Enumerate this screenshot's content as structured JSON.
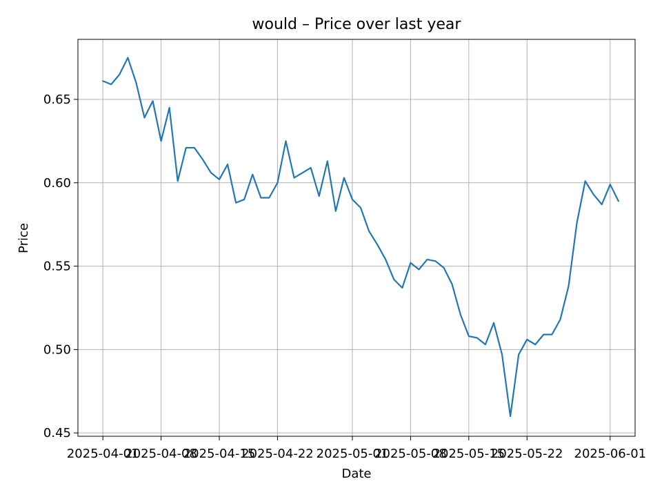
{
  "chart_data": {
    "type": "line",
    "title": "would – Price over last year",
    "xlabel": "Date",
    "ylabel": "Price",
    "grid": true,
    "colors": {
      "series": "#1f77b4"
    },
    "xlim": [
      "2025-03-29",
      "2025-06-04"
    ],
    "ylim": [
      0.448,
      0.686
    ],
    "yticks": [
      0.45,
      0.5,
      0.55,
      0.6,
      0.65
    ],
    "ytick_labels": [
      "0.45",
      "0.50",
      "0.55",
      "0.60",
      "0.65"
    ],
    "xticks": [
      "2025-04-01",
      "2025-04-08",
      "2025-04-15",
      "2025-04-22",
      "2025-05-01",
      "2025-05-08",
      "2025-05-15",
      "2025-05-22",
      "2025-06-01"
    ],
    "xtick_labels": [
      "2025-04-01",
      "2025-04-08",
      "2025-04-15",
      "2025-04-22",
      "2025-05-01",
      "2025-05-08",
      "2025-05-15",
      "2025-05-22",
      "2025-06-01"
    ],
    "series": [
      {
        "name": "Price",
        "x": [
          "2025-04-01",
          "2025-04-02",
          "2025-04-03",
          "2025-04-04",
          "2025-04-05",
          "2025-04-06",
          "2025-04-07",
          "2025-04-08",
          "2025-04-09",
          "2025-04-10",
          "2025-04-11",
          "2025-04-12",
          "2025-04-13",
          "2025-04-14",
          "2025-04-15",
          "2025-04-16",
          "2025-04-17",
          "2025-04-18",
          "2025-04-19",
          "2025-04-20",
          "2025-04-21",
          "2025-04-22",
          "2025-04-23",
          "2025-04-24",
          "2025-04-25",
          "2025-04-26",
          "2025-04-27",
          "2025-04-28",
          "2025-04-29",
          "2025-04-30",
          "2025-05-01",
          "2025-05-02",
          "2025-05-03",
          "2025-05-04",
          "2025-05-05",
          "2025-05-06",
          "2025-05-07",
          "2025-05-08",
          "2025-05-09",
          "2025-05-10",
          "2025-05-11",
          "2025-05-12",
          "2025-05-13",
          "2025-05-14",
          "2025-05-15",
          "2025-05-16",
          "2025-05-17",
          "2025-05-18",
          "2025-05-19",
          "2025-05-20",
          "2025-05-21",
          "2025-05-22",
          "2025-05-23",
          "2025-05-24",
          "2025-05-25",
          "2025-05-26",
          "2025-05-27",
          "2025-05-28",
          "2025-05-29",
          "2025-05-30",
          "2025-05-31",
          "2025-06-01",
          "2025-06-02"
        ],
        "values": [
          0.661,
          0.659,
          0.665,
          0.675,
          0.66,
          0.639,
          0.649,
          0.625,
          0.645,
          0.601,
          0.621,
          0.621,
          0.614,
          0.606,
          0.602,
          0.611,
          0.588,
          0.59,
          0.605,
          0.591,
          0.591,
          0.6,
          0.625,
          0.603,
          0.606,
          0.609,
          0.592,
          0.613,
          0.583,
          0.603,
          0.59,
          0.585,
          0.571,
          0.563,
          0.554,
          0.542,
          0.537,
          0.552,
          0.548,
          0.554,
          0.553,
          0.549,
          0.539,
          0.521,
          0.508,
          0.507,
          0.503,
          0.516,
          0.497,
          0.46,
          0.497,
          0.506,
          0.503,
          0.509,
          0.509,
          0.518,
          0.538,
          0.576,
          0.601,
          0.593,
          0.587,
          0.599,
          0.589
        ]
      }
    ]
  }
}
